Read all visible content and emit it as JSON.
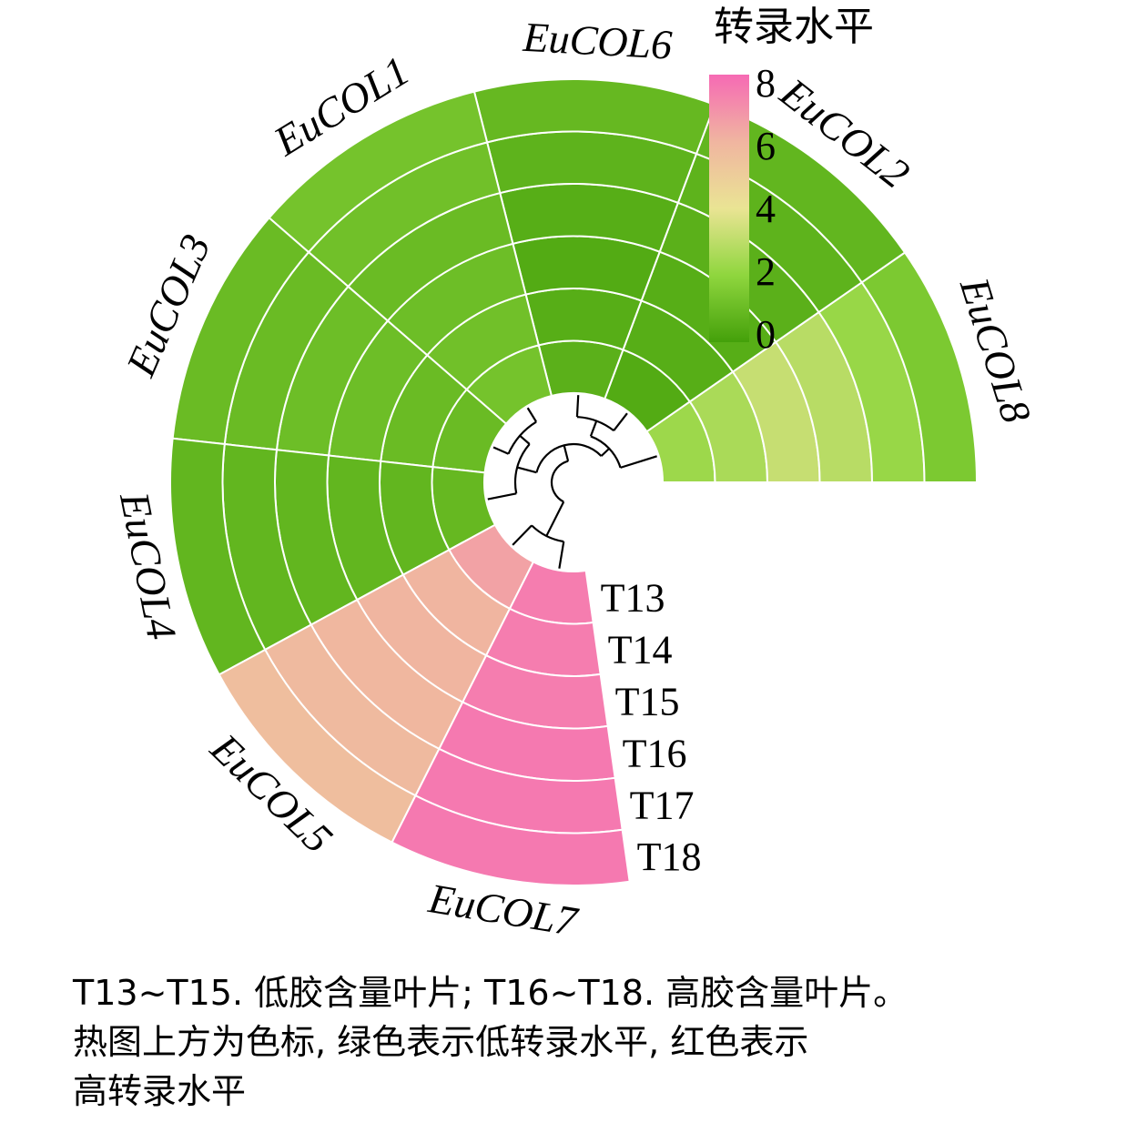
{
  "chart_data": {
    "type": "heatmap",
    "title": "",
    "samples": [
      "T13",
      "T14",
      "T15",
      "T16",
      "T17",
      "T18"
    ],
    "genes": [
      "EuCOL8",
      "EuCOL2",
      "EuCOL6",
      "EuCOL1",
      "EuCOL3",
      "EuCOL4",
      "EuCOL5",
      "EuCOL7"
    ],
    "values": [
      [
        2.3,
        2.6,
        3.2,
        2.9,
        2.2,
        1.5
      ],
      [
        0.4,
        0.5,
        0.5,
        0.6,
        0.7,
        0.8
      ],
      [
        0.6,
        0.5,
        0.4,
        0.5,
        0.7,
        0.9
      ],
      [
        1.3,
        1.2,
        1.1,
        1.0,
        1.2,
        1.3
      ],
      [
        1.0,
        1.0,
        1.1,
        1.1,
        1.0,
        1.0
      ],
      [
        0.9,
        0.8,
        0.8,
        0.8,
        0.8,
        0.8
      ],
      [
        6.5,
        6.0,
        6.0,
        5.9,
        5.8,
        5.6
      ],
      [
        7.5,
        7.5,
        7.5,
        7.6,
        7.6,
        7.6
      ]
    ],
    "colorbar": {
      "title": "转录水平",
      "ticks": [
        0,
        2,
        4,
        6,
        8
      ],
      "range": [
        0,
        8
      ],
      "stops": [
        {
          "value": 0,
          "color": "#44a00a"
        },
        {
          "value": 2,
          "color": "#8fd63e"
        },
        {
          "value": 4,
          "color": "#eae494"
        },
        {
          "value": 6,
          "color": "#f0b5a0"
        },
        {
          "value": 8,
          "color": "#f66ab4"
        }
      ]
    },
    "gene_order_by_dendrogram": true
  },
  "caption": {
    "lines": [
      "T13~T15. 低胶含量叶片; T16~T18. 高胶含量叶片。",
      "热图上方为色标, 绿色表示低转录水平, 红色表示",
      "高转录水平"
    ]
  }
}
